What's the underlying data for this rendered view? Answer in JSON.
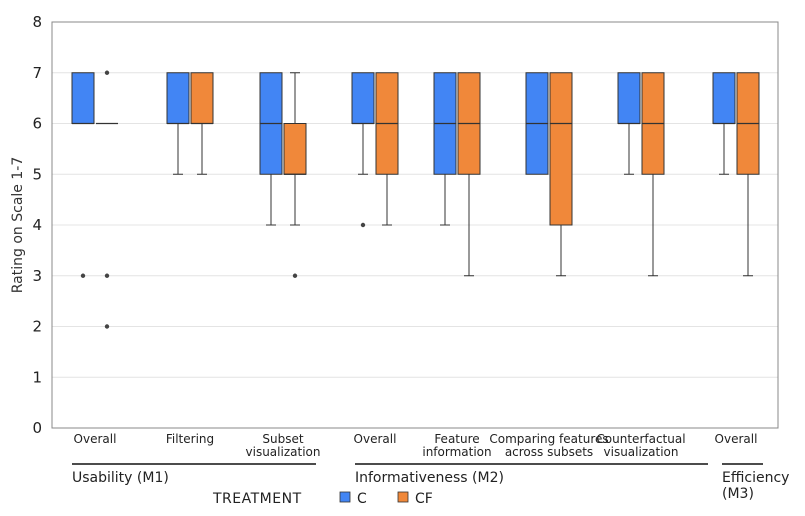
{
  "chart_data": {
    "type": "box",
    "title": "",
    "ylabel": "Rating on Scale 1-7",
    "ylim": [
      0,
      8
    ],
    "yticks": [
      0,
      1,
      2,
      3,
      4,
      5,
      6,
      7,
      8
    ],
    "grid": true,
    "legend": {
      "title": "TREATMENT",
      "position": "bottom",
      "entries": [
        {
          "name": "C",
          "color": "#4285f4"
        },
        {
          "name": "CF",
          "color": "#f0883a"
        }
      ]
    },
    "categories": [
      {
        "label": [
          "Overall"
        ],
        "group": 0
      },
      {
        "label": [
          "Filtering"
        ],
        "group": 0
      },
      {
        "label": [
          "Subset",
          "visualization"
        ],
        "group": 0
      },
      {
        "label": [
          "Overall"
        ],
        "group": 1
      },
      {
        "label": [
          "Feature",
          "information"
        ],
        "group": 1
      },
      {
        "label": [
          "Comparing features",
          "across subsets"
        ],
        "group": 1
      },
      {
        "label": [
          "Counterfactual",
          "visualization"
        ],
        "group": 1
      },
      {
        "label": [
          "Overall"
        ],
        "group": 2
      }
    ],
    "groups": [
      {
        "label": [
          "Usability (M1)"
        ]
      },
      {
        "label": [
          "Informativeness (M2)"
        ]
      },
      {
        "label": [
          "Efficiency",
          "(M3)"
        ]
      }
    ],
    "series": [
      {
        "name": "C",
        "color": "#4285f4",
        "boxes": [
          {
            "min": 6,
            "q1": 6,
            "median": 6,
            "q3": 7,
            "max": 7,
            "outliers": [
              3
            ]
          },
          {
            "min": 5,
            "q1": 6,
            "median": 6,
            "q3": 7,
            "max": 7,
            "outliers": []
          },
          {
            "min": 4,
            "q1": 5,
            "median": 6,
            "q3": 7,
            "max": 7,
            "outliers": []
          },
          {
            "min": 5,
            "q1": 6,
            "median": 6,
            "q3": 7,
            "max": 7,
            "outliers": [
              4
            ]
          },
          {
            "min": 4,
            "q1": 5,
            "median": 6,
            "q3": 7,
            "max": 7,
            "outliers": []
          },
          {
            "min": 5,
            "q1": 5,
            "median": 6,
            "q3": 7,
            "max": 7,
            "outliers": []
          },
          {
            "min": 5,
            "q1": 6,
            "median": 6,
            "q3": 7,
            "max": 7,
            "outliers": []
          },
          {
            "min": 5,
            "q1": 6,
            "median": 6,
            "q3": 7,
            "max": 7,
            "outliers": []
          }
        ]
      },
      {
        "name": "CF",
        "color": "#f0883a",
        "boxes": [
          {
            "min": 6,
            "q1": 6,
            "median": 6,
            "q3": 6,
            "max": 6,
            "outliers": [
              7,
              3,
              2
            ]
          },
          {
            "min": 5,
            "q1": 6,
            "median": 6,
            "q3": 7,
            "max": 7,
            "outliers": []
          },
          {
            "min": 4,
            "q1": 5,
            "median": 5,
            "q3": 6,
            "max": 7,
            "outliers": [
              3
            ]
          },
          {
            "min": 4,
            "q1": 5,
            "median": 6,
            "q3": 7,
            "max": 7,
            "outliers": []
          },
          {
            "min": 3,
            "q1": 5,
            "median": 6,
            "q3": 7,
            "max": 7,
            "outliers": []
          },
          {
            "min": 3,
            "q1": 4,
            "median": 6,
            "q3": 7,
            "max": 7,
            "outliers": []
          },
          {
            "min": 3,
            "q1": 5,
            "median": 6,
            "q3": 7,
            "max": 7,
            "outliers": []
          },
          {
            "min": 3,
            "q1": 5,
            "median": 6,
            "q3": 7,
            "max": 7,
            "outliers": []
          }
        ]
      }
    ]
  }
}
